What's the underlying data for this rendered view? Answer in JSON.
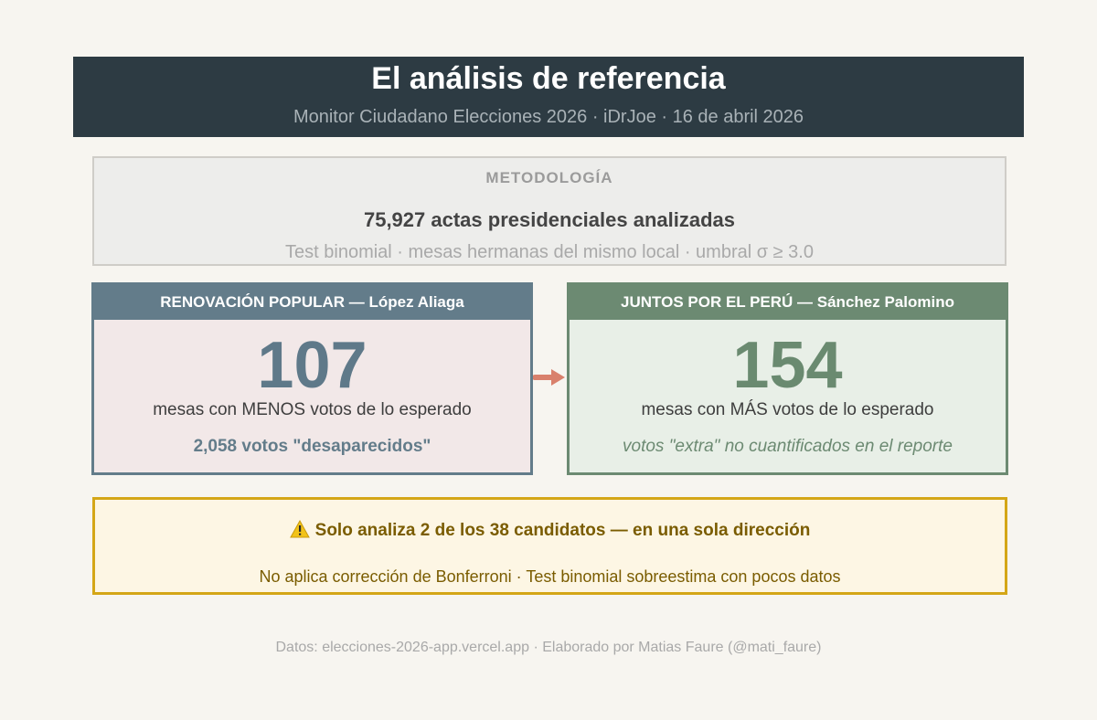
{
  "header": {
    "title": "El análisis de referencia",
    "subtitle": "Monitor Ciudadano Elecciones 2026 · iDrJoe · 16 de abril 2026"
  },
  "methodology": {
    "label": "METODOLOGÍA",
    "count": "75,927 actas presidenciales analizadas",
    "description": "Test binomial · mesas hermanas del mismo local · umbral σ ≥ 3.0"
  },
  "cards": {
    "left": {
      "heading": "RENOVACIÓN POPULAR — López Aliaga",
      "number": "107",
      "description": "mesas con MENOS votos de lo esperado",
      "note": "2,058 votos \"desaparecidos\"",
      "color": "#637c8a"
    },
    "right": {
      "heading": "JUNTOS POR EL PERÚ — Sánchez Palomino",
      "number": "154",
      "description": "mesas con MÁS votos de lo esperado",
      "note": "votos \"extra\" no cuantificados en el reporte",
      "color": "#6c8a72"
    }
  },
  "arrow": {
    "icon": "arrow-right-icon",
    "color": "#d9806c"
  },
  "warning": {
    "icon": "warning-icon",
    "title": "Solo analiza 2 de los 38 candidatos — en una sola dirección",
    "description": "No aplica corrección de Bonferroni · Test binomial sobreestima con pocos datos",
    "color": "#d4a617"
  },
  "footer": {
    "text": "Datos: elecciones-2026-app.vercel.app · Elaborado por Matias Faure (@mati_faure)"
  }
}
